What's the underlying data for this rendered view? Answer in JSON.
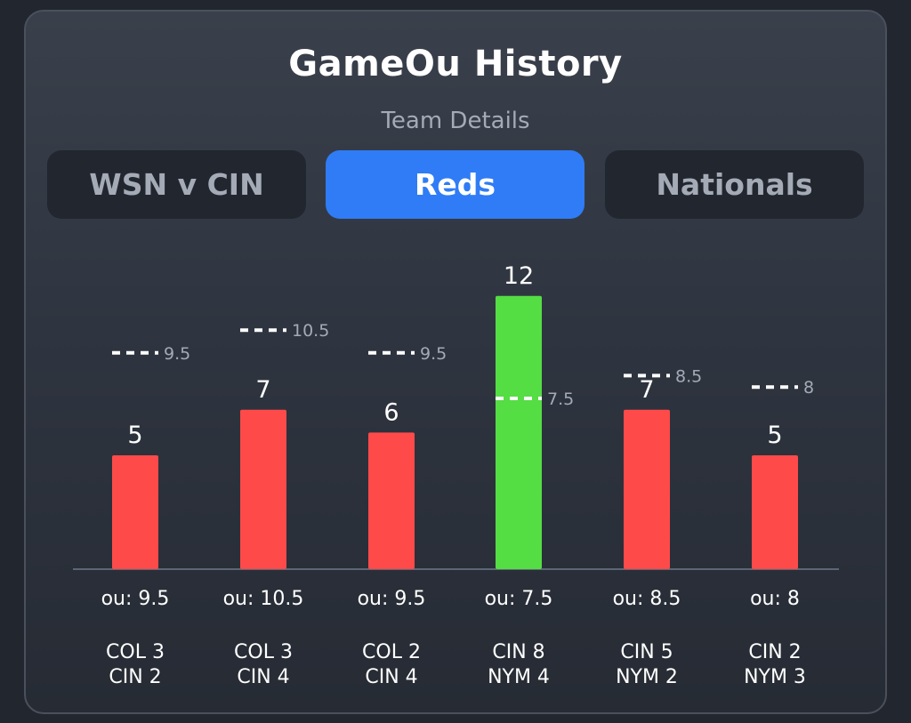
{
  "header": {
    "title": "GameOu History",
    "subtitle": "Team Details"
  },
  "tabs": [
    {
      "label": "WSN v CIN",
      "active": false
    },
    {
      "label": "Reds",
      "active": true
    },
    {
      "label": "Nationals",
      "active": false
    }
  ],
  "colors": {
    "over": "#55dd44",
    "under": "#ff4a4a",
    "tab_active": "#2f7cf6",
    "line_marker": "#ffffff"
  },
  "chart_data": {
    "type": "bar",
    "ylim": [
      0,
      12
    ],
    "grid": false,
    "categories": [
      "COL 3 / CIN 2",
      "COL 3 / CIN 4",
      "COL 2 / CIN 4",
      "CIN 8 / NYM 4",
      "CIN 5 / NYM 2",
      "CIN 2 / NYM 3"
    ],
    "values": [
      5,
      7,
      6,
      12,
      7,
      5
    ],
    "ou_lines": [
      9.5,
      10.5,
      9.5,
      7.5,
      8.5,
      8
    ],
    "ou_line_labels": [
      "9.5",
      "10.5",
      "9.5",
      "7.5",
      "8.5",
      "8"
    ],
    "ou_labels": [
      "ou: 9.5",
      "ou: 10.5",
      "ou: 9.5",
      "ou: 7.5",
      "ou: 8.5",
      "ou: 8"
    ],
    "value_labels": [
      "5",
      "7",
      "6",
      "12",
      "7",
      "5"
    ],
    "scores": [
      [
        "COL 3",
        "CIN 2"
      ],
      [
        "COL 3",
        "CIN 4"
      ],
      [
        "COL 2",
        "CIN 4"
      ],
      [
        "CIN 8",
        "NYM 4"
      ],
      [
        "CIN 5",
        "NYM 2"
      ],
      [
        "CIN 2",
        "NYM 3"
      ]
    ]
  }
}
